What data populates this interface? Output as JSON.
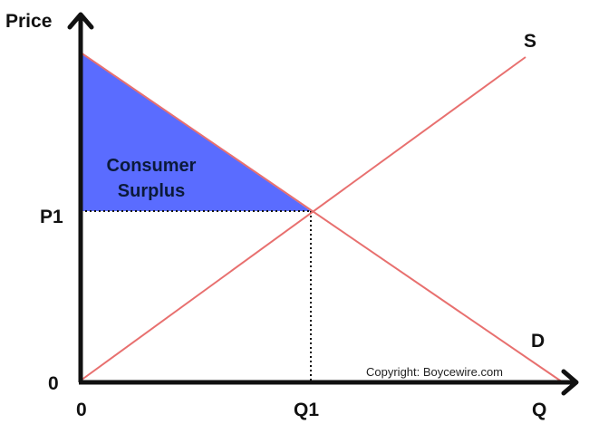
{
  "diagram": {
    "y_axis_label": "Price",
    "x_axis_label": "Q",
    "origin_y_label": "0",
    "origin_x_label": "0",
    "price_label": "P1",
    "quantity_label": "Q1",
    "supply_label": "S",
    "demand_label": "D",
    "region_label_line1": "Consumer",
    "region_label_line2": "Surplus",
    "copyright": "Copyright: Boycewire.com"
  },
  "colors": {
    "curve": "#e8706f",
    "surplus_fill": "#5a6cff",
    "axis": "#111111",
    "guide": "#111111"
  }
}
